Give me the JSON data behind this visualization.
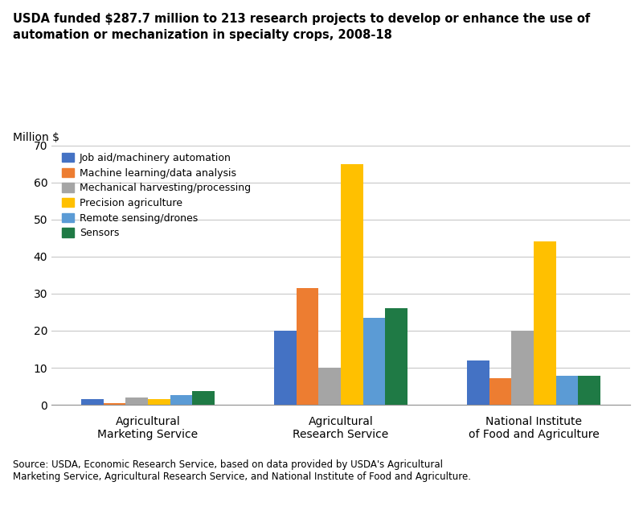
{
  "title": "USDA funded $287.7 million to 213 research projects to develop or enhance the use of\nautomation or mechanization in specialty crops, 2008-18",
  "ylabel": "Million $",
  "ylim": [
    0,
    70
  ],
  "yticks": [
    0,
    10,
    20,
    30,
    40,
    50,
    60,
    70
  ],
  "categories": [
    "Agricultural\nMarketing Service",
    "Agricultural\nResearch Service",
    "National Institute\nof Food and Agriculture"
  ],
  "series": [
    {
      "label": "Job aid/machinery automation",
      "color": "#4472C4",
      "values": [
        1.5,
        20.0,
        12.0
      ]
    },
    {
      "label": "Machine learning/data analysis",
      "color": "#ED7D31",
      "values": [
        0.4,
        31.5,
        7.2
      ]
    },
    {
      "label": "Mechanical harvesting/processing",
      "color": "#A5A5A5",
      "values": [
        2.0,
        10.0,
        20.0
      ]
    },
    {
      "label": "Precision agriculture",
      "color": "#FFC000",
      "values": [
        1.6,
        65.0,
        44.0
      ]
    },
    {
      "label": "Remote sensing/drones",
      "color": "#5B9BD5",
      "values": [
        2.7,
        23.5,
        7.8
      ]
    },
    {
      "label": "Sensors",
      "color": "#1F7A45",
      "values": [
        3.8,
        26.0,
        7.8
      ]
    }
  ],
  "source_text": "Source: USDA, Economic Research Service, based on data provided by USDA's Agricultural\nMarketing Service, Agricultural Research Service, and National Institute of Food and Agriculture.",
  "grid_color": "#C8C8C8"
}
